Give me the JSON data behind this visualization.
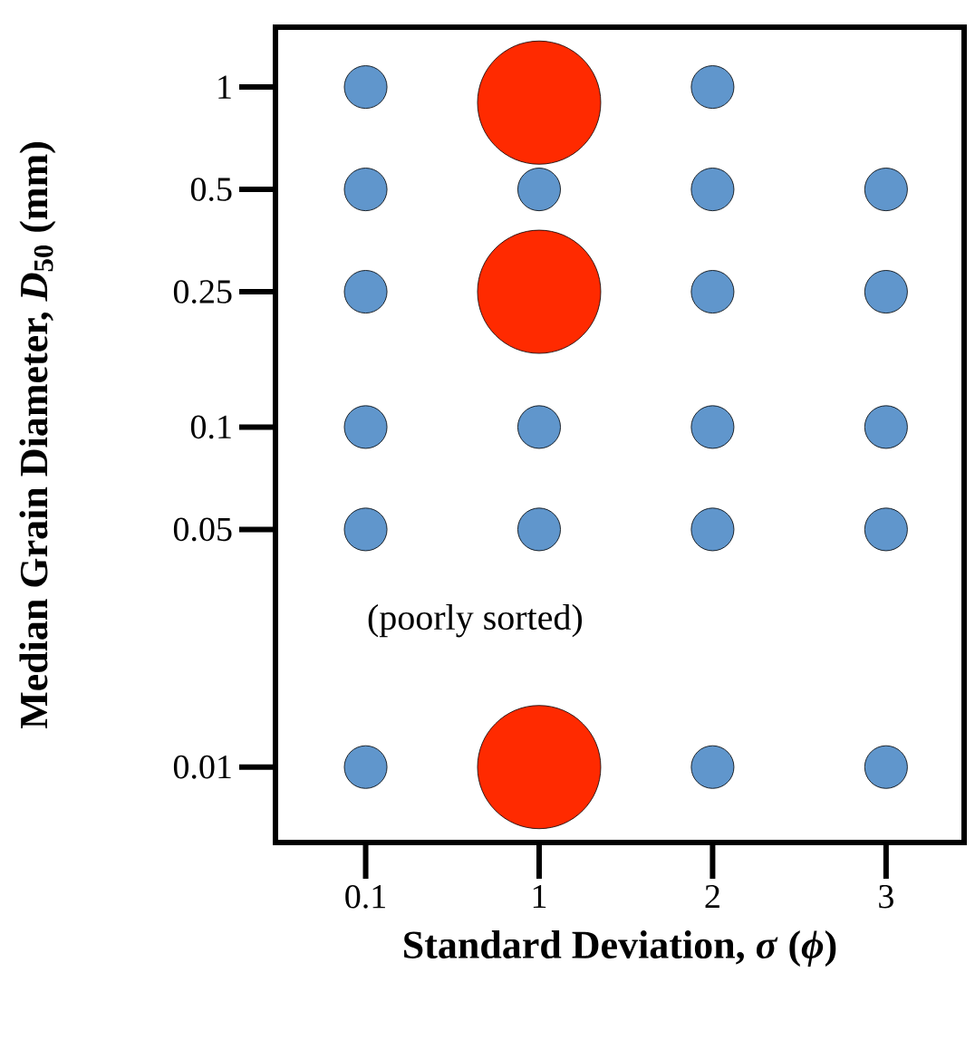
{
  "chart_data": {
    "type": "bubble",
    "xlabel": "Standard Deviation, *σ* (*ϕ*)",
    "ylabel": "Median Grain Diameter, *D*$_{50}$ (mm)",
    "categories": [
      "0.1",
      "1",
      "2",
      "3"
    ],
    "log": "y",
    "ylim": [
      0.006,
      1.5
    ],
    "yticks": [
      0.01,
      0.05,
      0.1,
      0.25,
      0.5,
      1
    ],
    "annotations": [
      "(poorly sorted)"
    ],
    "series": [
      {
        "color": "#6096cc",
        "x": [
          "0.1",
          "0.1",
          "0.1",
          "0.1",
          "0.1",
          "0.1",
          "1",
          "1",
          "1",
          "2",
          "2",
          "2",
          "2",
          "2",
          "2",
          "3",
          "3",
          "3",
          "3",
          "3"
        ],
        "values": [
          0.01,
          0.05,
          0.1,
          0.25,
          0.5,
          1,
          0.05,
          0.1,
          0.5,
          0.01,
          0.05,
          0.1,
          0.25,
          0.5,
          1,
          0.01,
          0.05,
          0.1,
          0.25,
          0.5
        ],
        "sizes": [
          0.12,
          0.12,
          0.12,
          0.12,
          0.12,
          0.12,
          0.12,
          0.12,
          0.12,
          0.12,
          0.12,
          0.12,
          0.12,
          0.12,
          0.12,
          0.12,
          0.12,
          0.12,
          0.12,
          0.12
        ]
      },
      {
        "color": "#ff2a00",
        "x": [
          "1",
          "1",
          "1"
        ],
        "values": [
          0.9,
          0.25,
          0.01
        ],
        "sizes": [
          1,
          1,
          1
        ]
      }
    ]
  }
}
